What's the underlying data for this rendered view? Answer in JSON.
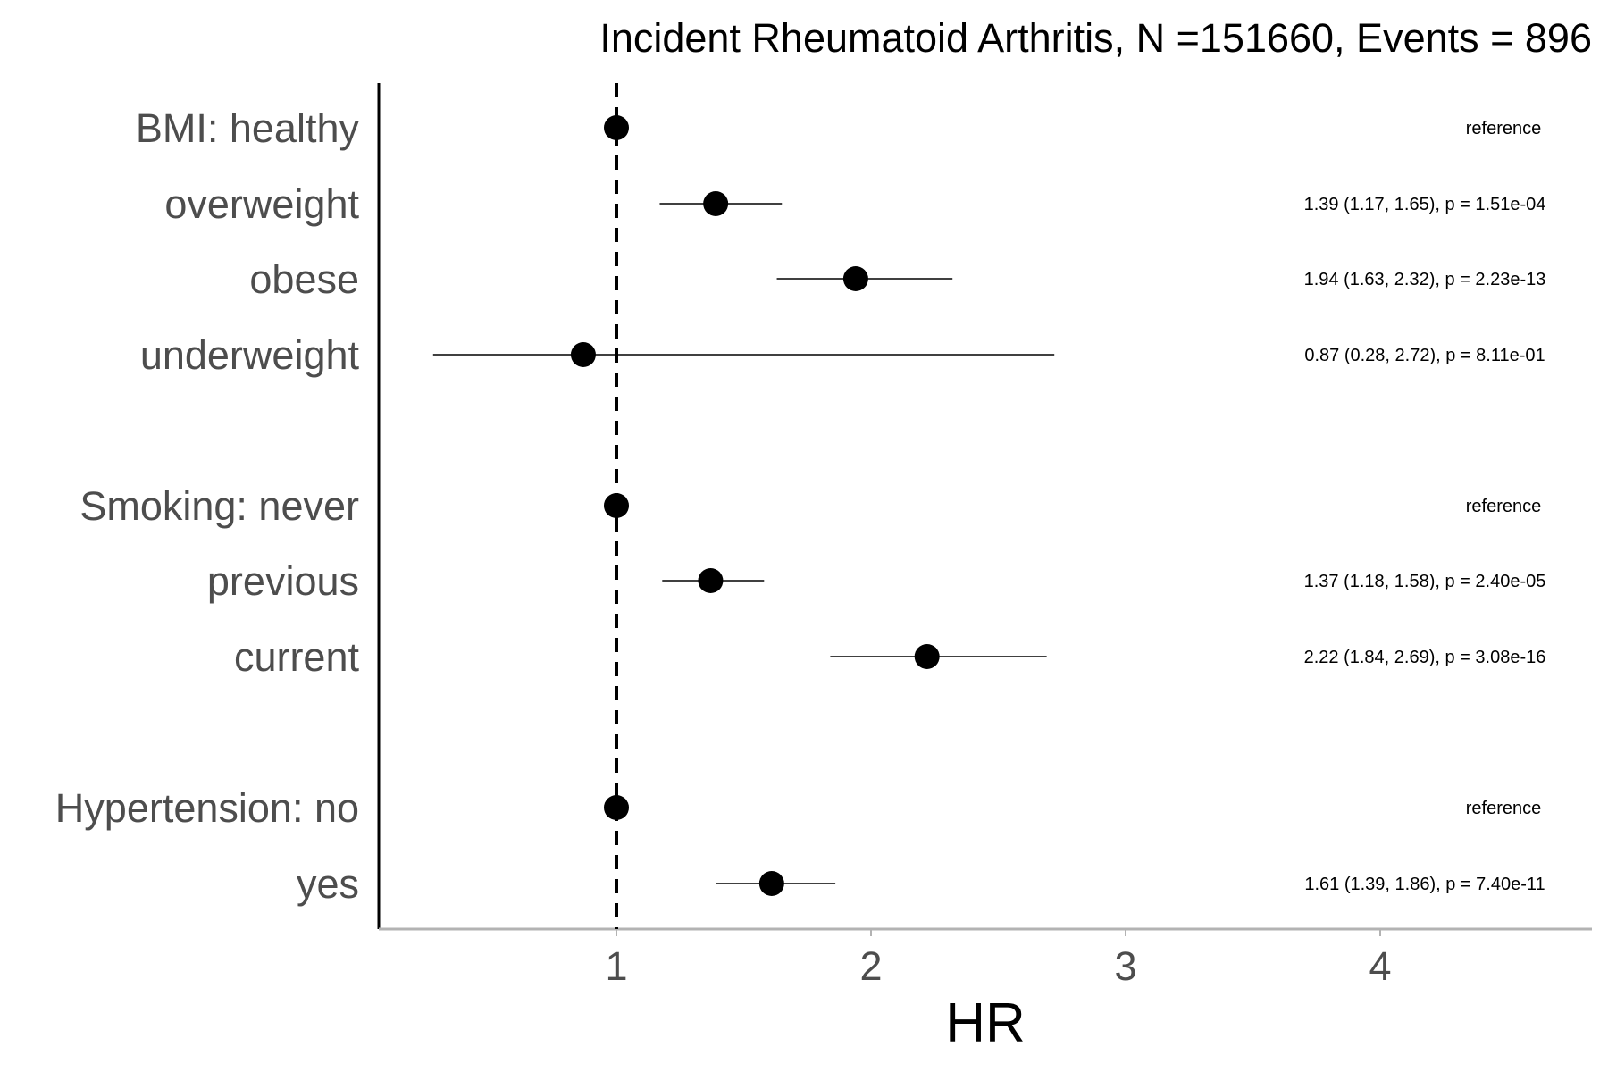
{
  "chart_data": {
    "type": "scatter",
    "subtype": "forest-plot",
    "title": "Incident Rheumatoid Arthritis, N =151660, Events = 896",
    "xlabel": "HR",
    "ylabel": "",
    "xlim": [
      0.08,
      4.86
    ],
    "x_ticks": [
      1,
      2,
      3,
      4
    ],
    "reference_line": 1,
    "grid": false,
    "rows": [
      {
        "label": "BMI: healthy",
        "hr": 1.0,
        "lower": null,
        "upper": null,
        "annotation": "reference"
      },
      {
        "label": "overweight",
        "hr": 1.39,
        "lower": 1.17,
        "upper": 1.65,
        "annotation": "1.39 (1.17, 1.65), p = 1.51e-04"
      },
      {
        "label": "obese",
        "hr": 1.94,
        "lower": 1.63,
        "upper": 2.32,
        "annotation": "1.94 (1.63, 2.32), p = 2.23e-13"
      },
      {
        "label": "underweight",
        "hr": 0.87,
        "lower": 0.28,
        "upper": 2.72,
        "annotation": "0.87 (0.28, 2.72), p = 8.11e-01"
      },
      {
        "label": "Smoking: never",
        "hr": 1.0,
        "lower": null,
        "upper": null,
        "annotation": "reference"
      },
      {
        "label": "previous",
        "hr": 1.37,
        "lower": 1.18,
        "upper": 1.58,
        "annotation": "1.37 (1.18, 1.58), p = 2.40e-05"
      },
      {
        "label": "current",
        "hr": 2.22,
        "lower": 1.84,
        "upper": 2.69,
        "annotation": "2.22 (1.84, 2.69), p = 3.08e-16"
      },
      {
        "label": "Hypertension: no",
        "hr": 1.0,
        "lower": null,
        "upper": null,
        "annotation": "reference"
      },
      {
        "label": "yes",
        "hr": 1.61,
        "lower": 1.39,
        "upper": 1.86,
        "annotation": "1.61 (1.39, 1.86), p = 7.40e-11"
      }
    ],
    "colors": {
      "point": "#000000",
      "ci_line": "#000000",
      "reference_line": "#000000",
      "row_label": "#4d4d4d",
      "x_axis": "#b3b3b3"
    }
  }
}
